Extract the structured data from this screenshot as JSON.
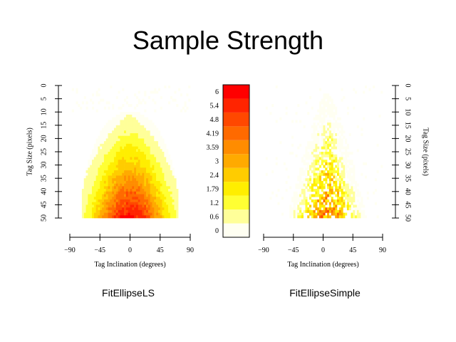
{
  "title": "Sample Strength",
  "chart_data": [
    {
      "type": "heatmap",
      "panel": "FitEllipseLS",
      "caption": "FitEllipseLS",
      "xlabel": "Tag Inclination (degrees)",
      "ylabel": "Tag Size (pixels)",
      "xlim": [
        -90,
        90
      ],
      "ylim": [
        0,
        50
      ],
      "xticks": [
        "−90",
        "−45",
        "0",
        "45",
        "90"
      ],
      "yticks": [
        "0",
        "5",
        "10",
        "15",
        "20",
        "25",
        "30",
        "35",
        "40",
        "45",
        "50"
      ],
      "shape": "dense dome centered at 0 degrees; support widens from about ±20 deg at size 15 to about ±70 deg at size 50; max strength ~6 at 0 deg, size 50"
    },
    {
      "type": "heatmap",
      "panel": "FitEllipseSimple",
      "caption": "FitEllipseSimple",
      "xlabel": "Tag Inclination (degrees)",
      "ylabel": "Tag Size (pixels)",
      "xlim": [
        -90,
        90
      ],
      "ylim": [
        0,
        50
      ],
      "xticks": [
        "−90",
        "−45",
        "0",
        "45",
        "90"
      ],
      "yticks": [
        "0",
        "5",
        "10",
        "15",
        "20",
        "25",
        "30",
        "35",
        "40",
        "45",
        "50"
      ],
      "shape": "sparse triangular spread centered near 5 deg; max strength ~4 at size 50"
    }
  ],
  "colorbar": {
    "labels": [
      "0",
      "0.6",
      "1.2",
      "1.79",
      "2.4",
      "3",
      "3.59",
      "4.19",
      "4.8",
      "5.4",
      "6"
    ],
    "colors": [
      "#FFFFF2",
      "#FFFF99",
      "#FFFF33",
      "#FFEE00",
      "#FFCC00",
      "#FFAA00",
      "#FF8C00",
      "#FF6A00",
      "#FF4800",
      "#FF2400",
      "#FF0000"
    ],
    "max": 6.6
  }
}
